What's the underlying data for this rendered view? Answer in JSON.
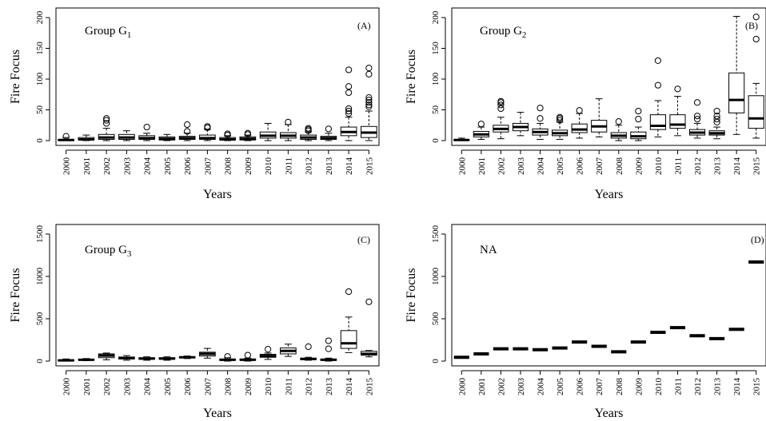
{
  "chart_data": [
    {
      "type": "box",
      "panel_label": "(A)",
      "group_label": "Group",
      "group_symbol": "G",
      "group_subscript": "1",
      "xlabel": "Years",
      "ylabel": "Fire Focus",
      "ylim": [
        0,
        200
      ],
      "yticks": [
        0,
        50,
        100,
        150,
        200
      ],
      "categories": [
        "2000",
        "2001",
        "2002",
        "2003",
        "2004",
        "2005",
        "2006",
        "2007",
        "2008",
        "2009",
        "2010",
        "2011",
        "2012",
        "2013",
        "2014",
        "2015"
      ],
      "boxes": [
        {
          "min": 0,
          "q1": 0,
          "median": 1,
          "q3": 2,
          "max": 5,
          "outliers": [
            7
          ]
        },
        {
          "min": 0,
          "q1": 1,
          "median": 2,
          "q3": 5,
          "max": 9,
          "outliers": []
        },
        {
          "min": 0,
          "q1": 2,
          "median": 5,
          "q3": 10,
          "max": 20,
          "outliers": [
            28,
            33,
            36
          ]
        },
        {
          "min": 0,
          "q1": 2,
          "median": 5,
          "q3": 10,
          "max": 16,
          "outliers": []
        },
        {
          "min": 0,
          "q1": 2,
          "median": 4,
          "q3": 8,
          "max": 12,
          "outliers": [
            22
          ]
        },
        {
          "min": 0,
          "q1": 1,
          "median": 3,
          "q3": 6,
          "max": 10,
          "outliers": []
        },
        {
          "min": 0,
          "q1": 2,
          "median": 4,
          "q3": 7,
          "max": 12,
          "outliers": [
            15,
            26
          ]
        },
        {
          "min": 0,
          "q1": 2,
          "median": 4,
          "q3": 9,
          "max": 18,
          "outliers": [
            21,
            23
          ]
        },
        {
          "min": 0,
          "q1": 1,
          "median": 2,
          "q3": 5,
          "max": 8,
          "outliers": [
            9,
            11
          ]
        },
        {
          "min": 0,
          "q1": 1,
          "median": 3,
          "q3": 6,
          "max": 9,
          "outliers": [
            10,
            12
          ]
        },
        {
          "min": 0,
          "q1": 4,
          "median": 8,
          "q3": 14,
          "max": 28,
          "outliers": []
        },
        {
          "min": 0,
          "q1": 4,
          "median": 8,
          "q3": 13,
          "max": 26,
          "outliers": [
            30
          ]
        },
        {
          "min": 0,
          "q1": 2,
          "median": 5,
          "q3": 9,
          "max": 14,
          "outliers": [
            16,
            18,
            20
          ]
        },
        {
          "min": 0,
          "q1": 2,
          "median": 4,
          "q3": 7,
          "max": 12,
          "outliers": [
            19
          ]
        },
        {
          "min": 0,
          "q1": 8,
          "median": 14,
          "q3": 22,
          "max": 38,
          "outliers": [
            44,
            48,
            52,
            78,
            88,
            115
          ]
        },
        {
          "min": 0,
          "q1": 5,
          "median": 13,
          "q3": 23,
          "max": 48,
          "outliers": [
            55,
            58,
            62,
            66,
            70,
            108,
            118
          ]
        }
      ]
    },
    {
      "type": "box",
      "panel_label": "(B)",
      "group_label": "Group",
      "group_symbol": "G",
      "group_subscript": "2",
      "xlabel": "Years",
      "ylabel": "Fire Focus",
      "ylim": [
        0,
        200
      ],
      "yticks": [
        0,
        50,
        100,
        150,
        200
      ],
      "categories": [
        "2000",
        "2001",
        "2002",
        "2003",
        "2004",
        "2005",
        "2006",
        "2007",
        "2008",
        "2009",
        "2010",
        "2011",
        "2012",
        "2013",
        "2014",
        "2015"
      ],
      "boxes": [
        {
          "min": 0,
          "q1": 0,
          "median": 1,
          "q3": 2,
          "max": 4,
          "outliers": []
        },
        {
          "min": 2,
          "q1": 6,
          "median": 10,
          "q3": 15,
          "max": 22,
          "outliers": [
            27
          ]
        },
        {
          "min": 3,
          "q1": 14,
          "median": 19,
          "q3": 25,
          "max": 38,
          "outliers": [
            52,
            58,
            62,
            64
          ]
        },
        {
          "min": 8,
          "q1": 16,
          "median": 22,
          "q3": 28,
          "max": 46,
          "outliers": []
        },
        {
          "min": 2,
          "q1": 9,
          "median": 14,
          "q3": 19,
          "max": 28,
          "outliers": [
            36,
            53
          ]
        },
        {
          "min": 2,
          "q1": 8,
          "median": 12,
          "q3": 17,
          "max": 30,
          "outliers": [
            33,
            36,
            38
          ]
        },
        {
          "min": 4,
          "q1": 13,
          "median": 18,
          "q3": 27,
          "max": 44,
          "outliers": [
            49
          ]
        },
        {
          "min": 6,
          "q1": 14,
          "median": 23,
          "q3": 33,
          "max": 68,
          "outliers": []
        },
        {
          "min": 0,
          "q1": 4,
          "median": 8,
          "q3": 13,
          "max": 25,
          "outliers": [
            31
          ]
        },
        {
          "min": 0,
          "q1": 3,
          "median": 7,
          "q3": 14,
          "max": 22,
          "outliers": [
            35,
            48
          ]
        },
        {
          "min": 6,
          "q1": 18,
          "median": 24,
          "q3": 42,
          "max": 65,
          "outliers": [
            90,
            130
          ]
        },
        {
          "min": 8,
          "q1": 20,
          "median": 26,
          "q3": 42,
          "max": 72,
          "outliers": [
            84
          ]
        },
        {
          "min": 4,
          "q1": 9,
          "median": 13,
          "q3": 18,
          "max": 28,
          "outliers": [
            35,
            40,
            62
          ]
        },
        {
          "min": 3,
          "q1": 9,
          "median": 12,
          "q3": 16,
          "max": 22,
          "outliers": [
            30,
            35,
            40,
            48
          ]
        },
        {
          "min": 10,
          "q1": 45,
          "median": 66,
          "q3": 110,
          "max": 202,
          "outliers": []
        },
        {
          "min": 4,
          "q1": 20,
          "median": 36,
          "q3": 73,
          "max": 93,
          "outliers": [
            165,
            201
          ]
        }
      ]
    },
    {
      "type": "box",
      "panel_label": "(C)",
      "group_label": "Group",
      "group_symbol": "G",
      "group_subscript": "3",
      "xlabel": "Years",
      "ylabel": "Fire Focus",
      "ylim": [
        0,
        1500
      ],
      "yticks": [
        0,
        500,
        1000,
        1500
      ],
      "categories": [
        "2000",
        "2001",
        "2002",
        "2003",
        "2004",
        "2005",
        "2006",
        "2007",
        "2008",
        "2009",
        "2010",
        "2011",
        "2012",
        "2013",
        "2014",
        "2015"
      ],
      "boxes": [
        {
          "min": 0,
          "q1": 2,
          "median": 8,
          "q3": 15,
          "max": 25,
          "outliers": []
        },
        {
          "min": 5,
          "q1": 10,
          "median": 15,
          "q3": 22,
          "max": 30,
          "outliers": []
        },
        {
          "min": 15,
          "q1": 40,
          "median": 65,
          "q3": 85,
          "max": 95,
          "outliers": []
        },
        {
          "min": 10,
          "q1": 25,
          "median": 35,
          "q3": 48,
          "max": 65,
          "outliers": []
        },
        {
          "min": 10,
          "q1": 22,
          "median": 30,
          "q3": 40,
          "max": 50,
          "outliers": []
        },
        {
          "min": 10,
          "q1": 22,
          "median": 30,
          "q3": 40,
          "max": 50,
          "outliers": []
        },
        {
          "min": 30,
          "q1": 38,
          "median": 45,
          "q3": 52,
          "max": 60,
          "outliers": []
        },
        {
          "min": 35,
          "q1": 60,
          "median": 85,
          "q3": 105,
          "max": 150,
          "outliers": []
        },
        {
          "min": 0,
          "q1": 8,
          "median": 15,
          "q3": 25,
          "max": 40,
          "outliers": [
            55
          ]
        },
        {
          "min": 0,
          "q1": 10,
          "median": 15,
          "q3": 25,
          "max": 35,
          "outliers": [
            70
          ]
        },
        {
          "min": 20,
          "q1": 45,
          "median": 60,
          "q3": 80,
          "max": 95,
          "outliers": [
            140
          ]
        },
        {
          "min": 55,
          "q1": 85,
          "median": 120,
          "q3": 155,
          "max": 200,
          "outliers": []
        },
        {
          "min": 10,
          "q1": 18,
          "median": 25,
          "q3": 35,
          "max": 45,
          "outliers": [
            170
          ]
        },
        {
          "min": 0,
          "q1": 8,
          "median": 15,
          "q3": 25,
          "max": 35,
          "outliers": [
            145,
            240
          ]
        },
        {
          "min": 100,
          "q1": 150,
          "median": 210,
          "q3": 360,
          "max": 520,
          "outliers": [
            820
          ]
        },
        {
          "min": 50,
          "q1": 70,
          "median": 85,
          "q3": 115,
          "max": 125,
          "outliers": [
            700
          ]
        }
      ]
    },
    {
      "type": "box",
      "panel_label": "(D)",
      "group_label": "NA",
      "group_symbol": "",
      "group_subscript": "",
      "xlabel": "Years",
      "ylabel": "Fire Focus",
      "ylim": [
        0,
        1500
      ],
      "yticks": [
        0,
        500,
        1000,
        1500
      ],
      "categories": [
        "2000",
        "2001",
        "2002",
        "2003",
        "2004",
        "2005",
        "2006",
        "2007",
        "2008",
        "2009",
        "2010",
        "2011",
        "2012",
        "2013",
        "2014",
        "2015"
      ],
      "values": [
        45,
        85,
        145,
        145,
        135,
        155,
        225,
        175,
        110,
        225,
        340,
        395,
        300,
        265,
        375,
        1170
      ]
    }
  ]
}
